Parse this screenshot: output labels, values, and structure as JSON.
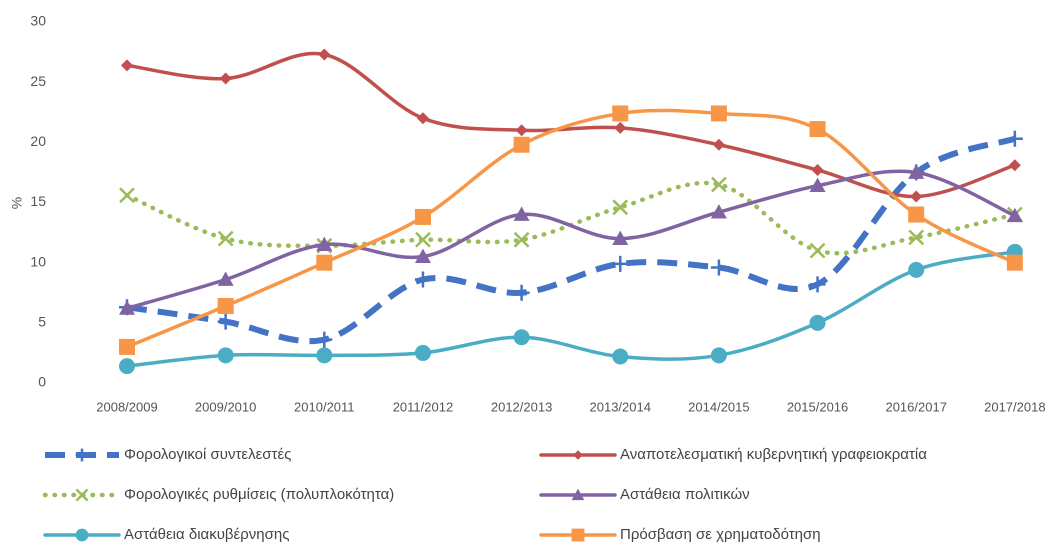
{
  "chart_data": {
    "type": "line",
    "y_label": "%",
    "categories": [
      "2008/2009",
      "2009/2010",
      "2010/2011",
      "2011/2012",
      "2012/2013",
      "2013/2014",
      "2014/2015",
      "2015/2016",
      "2016/2017",
      "2017/2018"
    ],
    "ylim": [
      0,
      30
    ],
    "yticks": [
      0,
      5,
      10,
      15,
      20,
      25,
      30
    ],
    "grid": false,
    "smooth": true,
    "series": [
      {
        "name": "Φορολογικοί συντελεστές",
        "color": "#4472c4",
        "dash": "dashed",
        "marker": "plus",
        "values": [
          6.3,
          5.1,
          3.6,
          8.6,
          7.5,
          9.9,
          9.6,
          8.2,
          17.5,
          20.3
        ]
      },
      {
        "name": "Αναποτελεσματική κυβερνητική γραφειοκρατία",
        "color": "#c0504d",
        "dash": "solid",
        "marker": "diamond",
        "values": [
          26.4,
          25.3,
          27.3,
          22.0,
          21.0,
          21.2,
          19.8,
          17.7,
          15.5,
          18.1
        ]
      },
      {
        "name": "Φορολογικές ρυθμίσεις (πολυπλοκότητα)",
        "color": "#9bbb59",
        "dash": "dotted",
        "marker": "x",
        "values": [
          15.6,
          12.0,
          11.4,
          11.9,
          11.9,
          14.6,
          16.5,
          11.0,
          12.1,
          14.0
        ]
      },
      {
        "name": "Αστάθεια πολιτικών",
        "color": "#8064a2",
        "dash": "solid",
        "marker": "triangle",
        "values": [
          6.2,
          8.6,
          11.5,
          10.5,
          14.0,
          12.0,
          14.2,
          16.4,
          17.5,
          13.9
        ]
      },
      {
        "name": "Αστάθεια διακυβέρνησης",
        "color": "#4bacc6",
        "dash": "solid",
        "marker": "circle",
        "values": [
          1.4,
          2.3,
          2.3,
          2.5,
          3.8,
          2.2,
          2.3,
          5.0,
          9.4,
          10.9
        ]
      },
      {
        "name": "Πρόσβαση σε χρηματοδότηση",
        "color": "#f79646",
        "dash": "solid",
        "marker": "square",
        "values": [
          3.0,
          6.4,
          10.0,
          13.8,
          19.8,
          22.4,
          22.4,
          21.1,
          14.0,
          10.0
        ]
      }
    ]
  }
}
